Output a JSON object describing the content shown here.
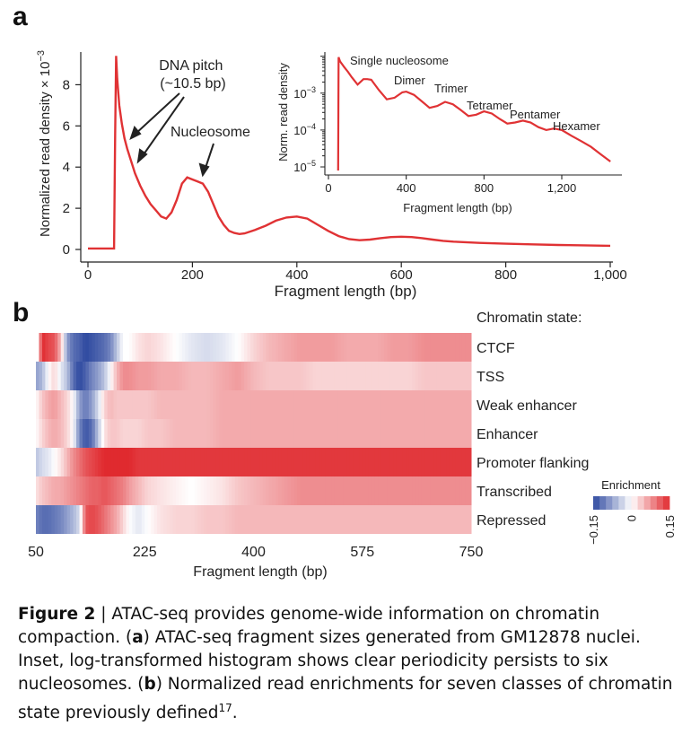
{
  "colors": {
    "line": "#e03234",
    "enrich_neg": "#2f4aa0",
    "enrich_zero": "#ffffff",
    "enrich_pos": "#e02a2f"
  },
  "panel_a": {
    "label": "a",
    "annotations": {
      "dna_pitch_line1": "DNA pitch",
      "dna_pitch_line2": "(~10.5 bp)",
      "nucleosome": "Nucleosome"
    },
    "inset_labels": [
      "Single nucleosome",
      "Dimer",
      "Trimer",
      "Tetramer",
      "Pentamer",
      "Hexamer"
    ]
  },
  "panel_b": {
    "label": "b"
  },
  "caption": {
    "label": "Figure 2",
    "separator": "|",
    "text_1": "ATAC-seq provides genome-wide information on chromatin compaction. (",
    "a": "a",
    "text_2": ") ATAC-seq fragment sizes generated from GM12878 nuclei. Inset, log-transformed histogram shows clear periodicity persists to six nucleosomes. (",
    "b": "b",
    "text_3": ") Normalized read enrichments for seven classes of chromatin state previously defined",
    "superscript": "17",
    "text_4": "."
  },
  "chart_data": [
    {
      "id": "a-main",
      "type": "line",
      "xlabel": "Fragment length (bp)",
      "ylabel": "Normalized read density × 10",
      "ylabel_exponent": "−3",
      "xlim": [
        0,
        1000
      ],
      "ylim": [
        0,
        9.5
      ],
      "xticks": [
        0,
        200,
        400,
        600,
        800,
        1000
      ],
      "xtick_labels": [
        "0",
        "200",
        "400",
        "600",
        "800",
        "1,000"
      ],
      "yticks": [
        0,
        2,
        4,
        6,
        8
      ],
      "ytick_labels": [
        "0",
        "2",
        "4",
        "6",
        "8"
      ],
      "series": [
        {
          "x": [
            0,
            50,
            52,
            54,
            56,
            60,
            65,
            70,
            75,
            80,
            85,
            90,
            95,
            100,
            110,
            120,
            130,
            140,
            150,
            160,
            170,
            180,
            190,
            200,
            210,
            220,
            230,
            240,
            250,
            260,
            270,
            280,
            290,
            300,
            320,
            340,
            360,
            380,
            400,
            420,
            440,
            460,
            480,
            500,
            520,
            540,
            560,
            580,
            600,
            620,
            640,
            660,
            680,
            700,
            750,
            800,
            850,
            900,
            950,
            1000
          ],
          "y": [
            0.05,
            0.05,
            5.5,
            9.4,
            8.3,
            7.0,
            6.1,
            5.4,
            4.9,
            4.5,
            4.1,
            3.7,
            3.4,
            3.1,
            2.6,
            2.2,
            1.9,
            1.6,
            1.5,
            1.8,
            2.4,
            3.2,
            3.5,
            3.4,
            3.3,
            3.2,
            2.8,
            2.2,
            1.6,
            1.2,
            0.9,
            0.8,
            0.75,
            0.78,
            0.95,
            1.15,
            1.4,
            1.55,
            1.6,
            1.5,
            1.2,
            0.9,
            0.65,
            0.5,
            0.45,
            0.48,
            0.55,
            0.6,
            0.62,
            0.6,
            0.55,
            0.48,
            0.42,
            0.38,
            0.32,
            0.28,
            0.25,
            0.22,
            0.2,
            0.18
          ]
        }
      ]
    },
    {
      "id": "a-inset",
      "type": "line",
      "xlabel": "Fragment length (bp)",
      "ylabel": "Norm. read density",
      "log_y": true,
      "xlim": [
        0,
        1500
      ],
      "ylim": [
        8e-06,
        0.013
      ],
      "xticks": [
        0,
        400,
        800,
        1200
      ],
      "xtick_labels": [
        "0",
        "400",
        "800",
        "1,200"
      ],
      "yticks": [
        1e-05,
        0.0001,
        0.001
      ],
      "ytick_labels": [
        "10",
        "10",
        "10"
      ],
      "ytick_exponents": [
        "−5",
        "−4",
        "−3"
      ],
      "series": [
        {
          "x": [
            50,
            52,
            60,
            80,
            100,
            120,
            150,
            180,
            200,
            220,
            260,
            300,
            340,
            380,
            400,
            440,
            480,
            520,
            560,
            600,
            640,
            680,
            720,
            760,
            800,
            840,
            880,
            920,
            960,
            1000,
            1040,
            1080,
            1120,
            1160,
            1200,
            1250,
            1300,
            1350,
            1400,
            1450
          ],
          "y": [
            8e-06,
            0.0094,
            0.0072,
            0.0052,
            0.0038,
            0.0027,
            0.0017,
            0.0024,
            0.0024,
            0.0023,
            0.0012,
            0.00068,
            0.00075,
            0.00105,
            0.0011,
            0.0009,
            0.0006,
            0.0004,
            0.00045,
            0.00058,
            0.0005,
            0.00035,
            0.00024,
            0.00026,
            0.00032,
            0.00028,
            0.0002,
            0.00015,
            0.00016,
            0.00018,
            0.00016,
            0.00012,
            0.0001,
            0.00011,
            0.0001,
            7e-05,
            5e-05,
            3.5e-05,
            2.2e-05,
            1.4e-05
          ]
        }
      ]
    },
    {
      "id": "b",
      "type": "heatmap",
      "header": "Chromatin state:",
      "rows": [
        "CTCF",
        "TSS",
        "Weak enhancer",
        "Enhancer",
        "Promoter flanking",
        "Transcribed",
        "Repressed"
      ],
      "xlabel": "Fragment length (bp)",
      "xlim": [
        50,
        750
      ],
      "xticks": [
        50,
        225,
        400,
        575,
        750
      ],
      "xtick_labels": [
        "50",
        "225",
        "400",
        "575",
        "750"
      ],
      "x_knots": [
        50,
        60,
        70,
        80,
        90,
        100,
        110,
        120,
        130,
        140,
        150,
        160,
        170,
        180,
        190,
        200,
        215,
        230,
        250,
        275,
        300,
        325,
        350,
        375,
        400,
        425,
        450,
        475,
        500,
        525,
        550,
        575,
        600,
        625,
        650,
        675,
        700,
        725,
        750
      ],
      "values": [
        [
          -0.05,
          0.15,
          0.13,
          0.12,
          0.05,
          -0.08,
          -0.12,
          -0.13,
          -0.15,
          -0.14,
          -0.13,
          -0.12,
          -0.1,
          -0.05,
          0.0,
          0.0,
          0.02,
          0.03,
          0.02,
          0.0,
          -0.02,
          -0.03,
          -0.02,
          0.0,
          0.03,
          0.05,
          0.06,
          0.07,
          0.07,
          0.07,
          0.06,
          0.06,
          0.06,
          0.07,
          0.07,
          0.08,
          0.08,
          0.08,
          0.08
        ],
        [
          -0.08,
          -0.06,
          0.0,
          0.03,
          -0.02,
          -0.05,
          -0.12,
          -0.15,
          -0.13,
          -0.1,
          -0.08,
          -0.05,
          0.0,
          0.05,
          0.08,
          0.08,
          0.07,
          0.07,
          0.06,
          0.06,
          0.05,
          0.05,
          0.06,
          0.07,
          0.05,
          0.04,
          0.04,
          0.04,
          0.03,
          0.03,
          0.03,
          0.03,
          0.03,
          0.03,
          0.03,
          0.04,
          0.04,
          0.04,
          0.04
        ],
        [
          0.0,
          0.04,
          0.06,
          0.07,
          0.05,
          0.03,
          0.0,
          -0.08,
          -0.11,
          -0.08,
          -0.03,
          0.03,
          0.05,
          0.04,
          0.04,
          0.04,
          0.04,
          0.04,
          0.05,
          0.05,
          0.05,
          0.05,
          0.06,
          0.06,
          0.06,
          0.06,
          0.06,
          0.06,
          0.06,
          0.06,
          0.06,
          0.06,
          0.06,
          0.06,
          0.06,
          0.06,
          0.06,
          0.06,
          0.06
        ],
        [
          0.0,
          0.03,
          0.05,
          0.06,
          0.05,
          0.03,
          0.0,
          -0.1,
          -0.14,
          -0.12,
          -0.05,
          0.02,
          0.04,
          0.04,
          0.03,
          0.03,
          0.03,
          0.04,
          0.04,
          0.05,
          0.05,
          0.05,
          0.06,
          0.06,
          0.06,
          0.06,
          0.06,
          0.06,
          0.06,
          0.06,
          0.06,
          0.06,
          0.06,
          0.06,
          0.06,
          0.06,
          0.06,
          0.06,
          0.06
        ],
        [
          -0.05,
          -0.03,
          -0.02,
          0.0,
          0.02,
          0.05,
          0.08,
          0.1,
          0.12,
          0.13,
          0.14,
          0.15,
          0.15,
          0.15,
          0.15,
          0.15,
          0.14,
          0.14,
          0.14,
          0.14,
          0.14,
          0.14,
          0.14,
          0.14,
          0.14,
          0.14,
          0.14,
          0.14,
          0.14,
          0.14,
          0.14,
          0.14,
          0.14,
          0.14,
          0.14,
          0.14,
          0.14,
          0.14,
          0.14
        ],
        [
          0.02,
          0.04,
          0.05,
          0.06,
          0.06,
          0.07,
          0.08,
          0.09,
          0.1,
          0.11,
          0.11,
          0.12,
          0.11,
          0.1,
          0.09,
          0.07,
          0.05,
          0.03,
          0.02,
          0.01,
          0.0,
          0.01,
          0.02,
          0.04,
          0.05,
          0.06,
          0.07,
          0.08,
          0.08,
          0.08,
          0.08,
          0.08,
          0.08,
          0.08,
          0.08,
          0.08,
          0.08,
          0.08,
          0.08
        ],
        [
          -0.1,
          -0.12,
          -0.12,
          -0.11,
          -0.1,
          -0.08,
          -0.06,
          -0.03,
          0.12,
          0.13,
          0.12,
          0.1,
          0.08,
          0.06,
          0.03,
          0.0,
          -0.02,
          0.0,
          0.02,
          0.03,
          0.03,
          0.04,
          0.04,
          0.05,
          0.05,
          0.05,
          0.05,
          0.05,
          0.05,
          0.05,
          0.05,
          0.05,
          0.05,
          0.05,
          0.05,
          0.05,
          0.05,
          0.05,
          0.05
        ]
      ],
      "legend": {
        "title": "Enrichment",
        "min": -0.15,
        "max": 0.15,
        "tick_labels": [
          "−0.15",
          "0",
          "0.15"
        ]
      }
    }
  ]
}
